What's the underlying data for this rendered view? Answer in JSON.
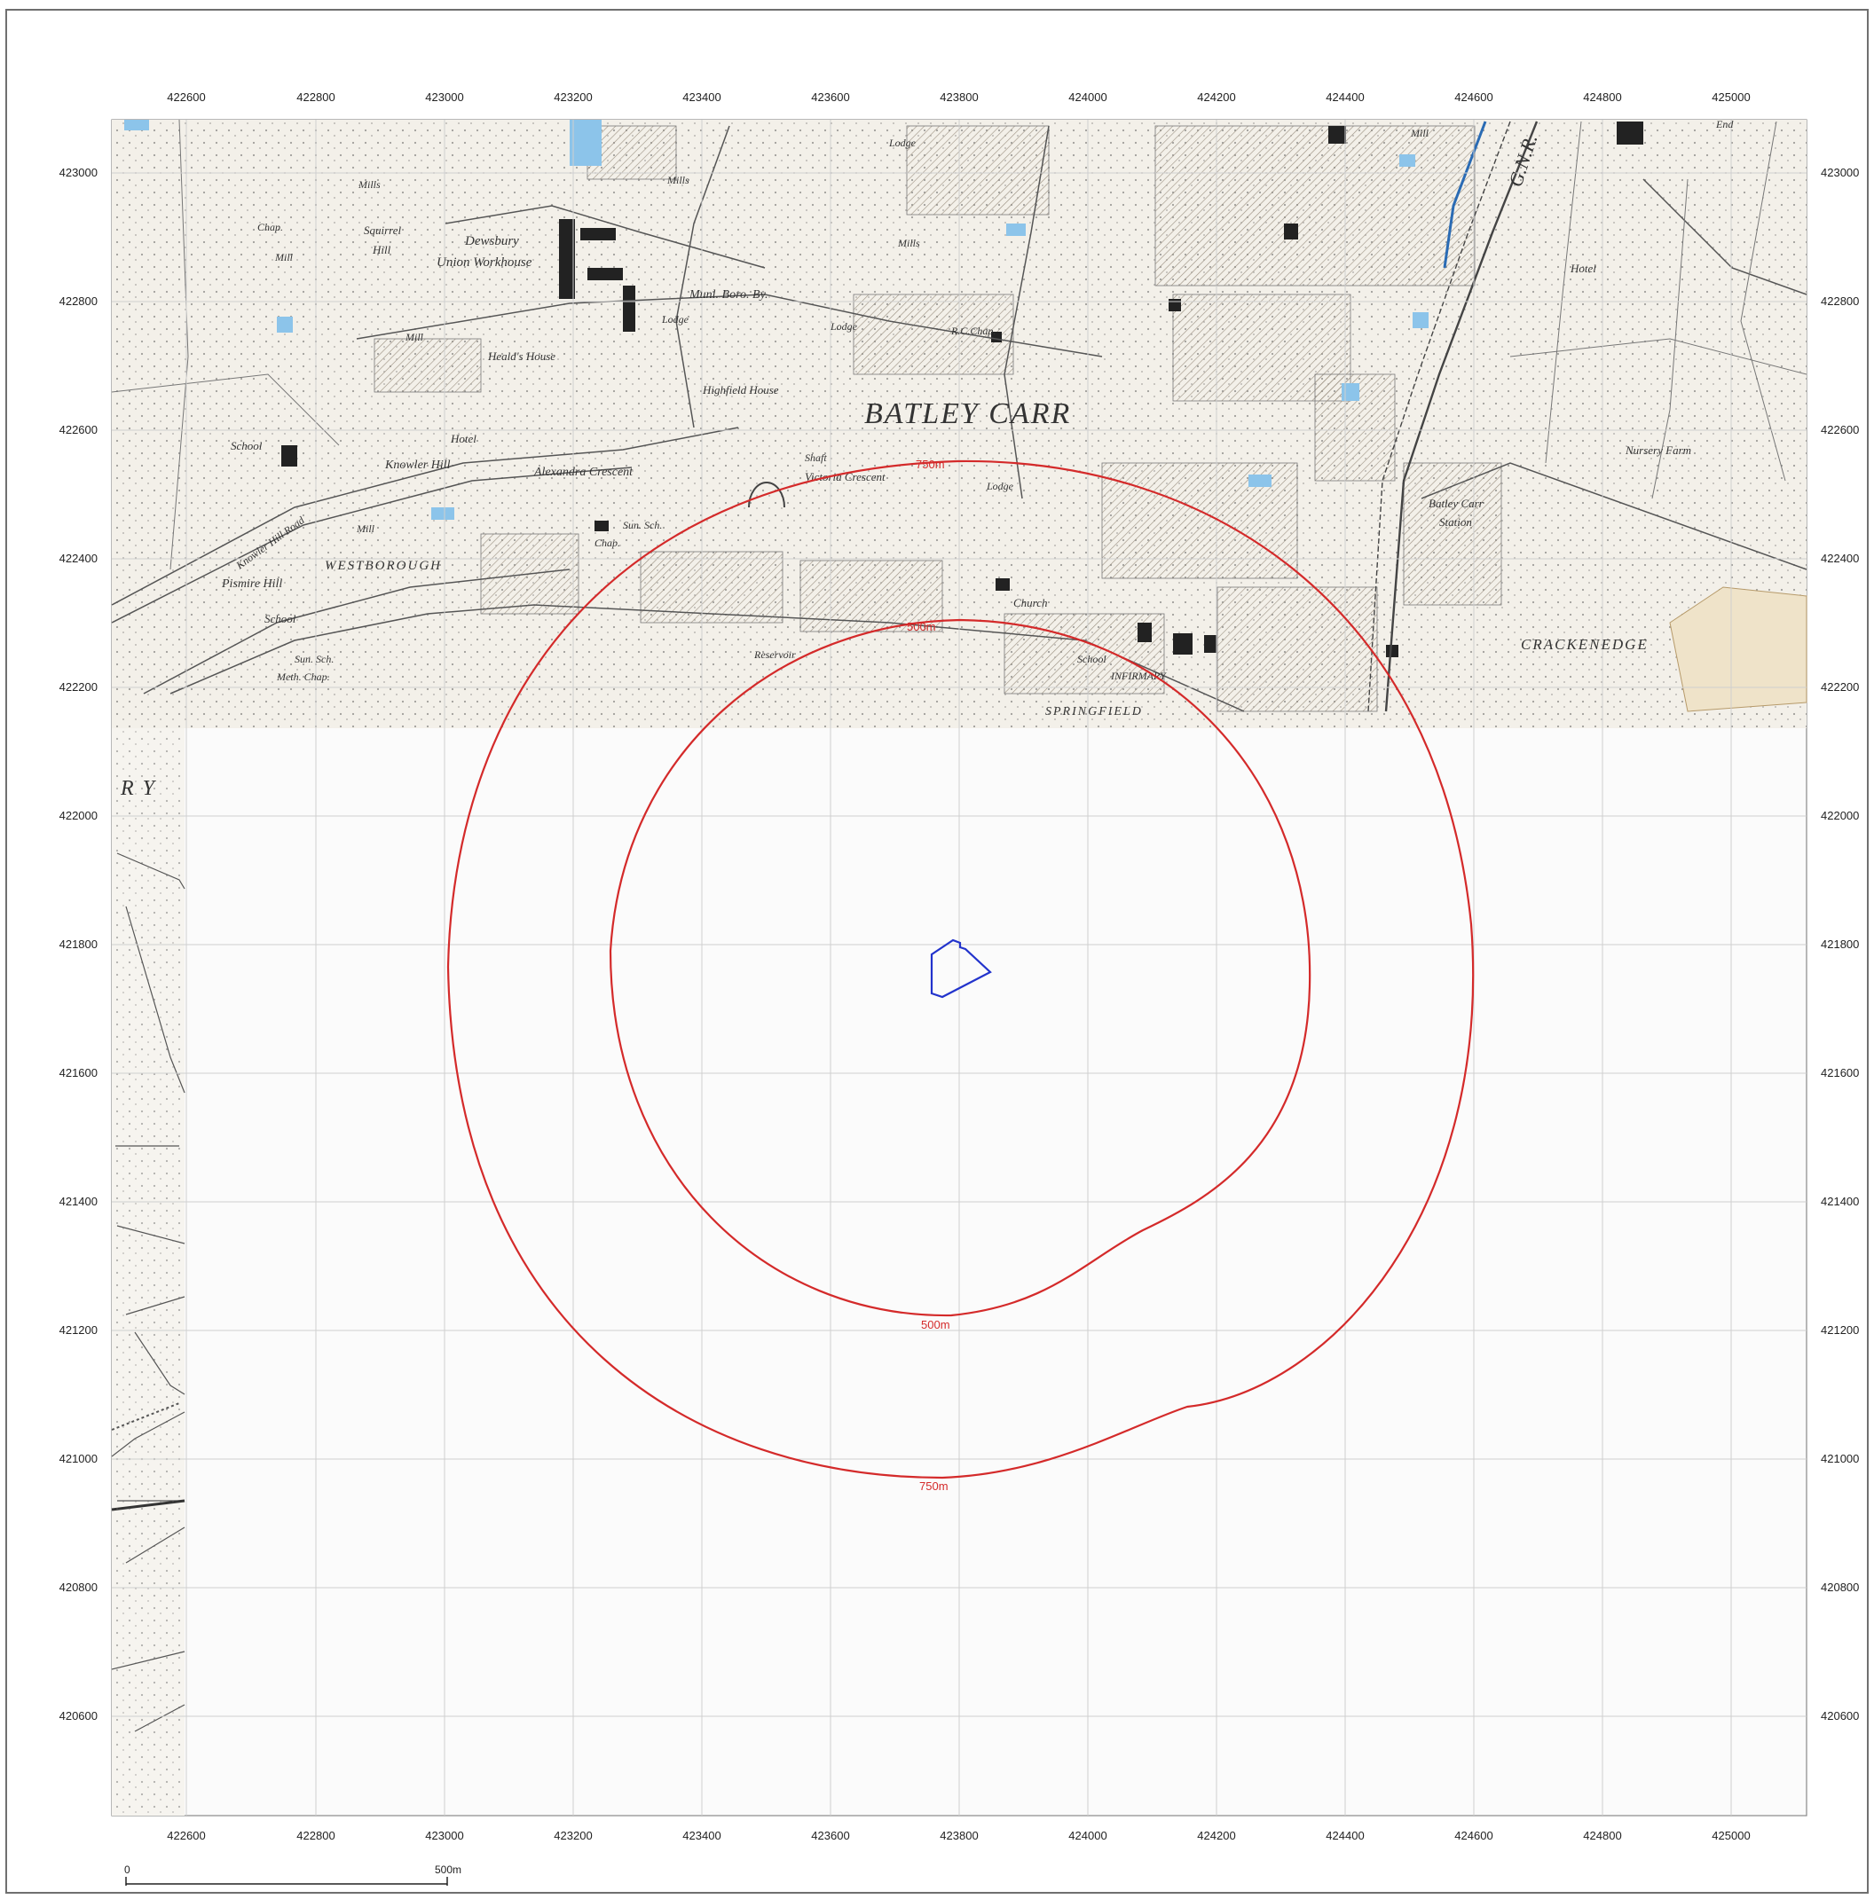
{
  "map": {
    "grid": {
      "eastings": [
        "422600",
        "422800",
        "423000",
        "423200",
        "423400",
        "423600",
        "423800",
        "424000",
        "424200",
        "424400",
        "424600",
        "424800",
        "425000"
      ],
      "northings": [
        "423000",
        "422800",
        "422600",
        "422400",
        "422200",
        "422000",
        "421800",
        "421600",
        "421400",
        "421200",
        "421000",
        "420800",
        "420600"
      ]
    },
    "buffers": [
      {
        "label": "500m",
        "label_bottom": "500m",
        "color": "#d42a2a"
      },
      {
        "label": "750m",
        "label_bottom": "750m",
        "color": "#d42a2a"
      }
    ],
    "site_outline_color": "#2233cc",
    "buffer_labels_top": {
      "inner": "500m",
      "outer": "750m"
    },
    "place_names": {
      "batley_carr": "BATLEY CARR",
      "westborough": "WESTBOROUGH",
      "crackenedge": "CRACKENEDGE",
      "springfield": "SPRINGFIELD",
      "dewsbury_workhouse": "Dewsbury",
      "dewsbury_workhouse_2": "Union Workhouse",
      "squirrel_hill": "Squirrel",
      "squirrel_hill_2": "Hill",
      "mills": "Mills",
      "mill": "Mill",
      "chap": "Chap.",
      "mund_boro_by": "Munl. Boro. By.",
      "lodge": "Lodge",
      "rc_chap": "R.C.Chap.",
      "healds_house": "Heald's House",
      "highfield_house": "Highfield House",
      "school": "School",
      "hotel": "Hotel",
      "knowler_hill": "Knowler Hill",
      "alexandra_crescent": "Alexandra Crescent",
      "victoria_crescent": "Victoria Crescent",
      "shaft": "Shaft",
      "sun_sch_chap": "Sun. Sch.",
      "chap2": "Chap.",
      "pismire_hill": "Pismire Hill",
      "knowler_hill_road": "Knowler Hill Road",
      "meth_chap": "Meth. Chap.",
      "church": "Church",
      "infirmary": "INFIRMARY",
      "batley_carr_station": "Batley Carr",
      "station": "Station",
      "gnr": "G.N.R.",
      "nursery_farm": "Nursery Farm",
      "hotel2": "Hotel",
      "end": "End",
      "reservoir": "Reservoir",
      "ury": "R Y"
    },
    "scale_bar": {
      "start": "0",
      "end": "500m"
    }
  }
}
